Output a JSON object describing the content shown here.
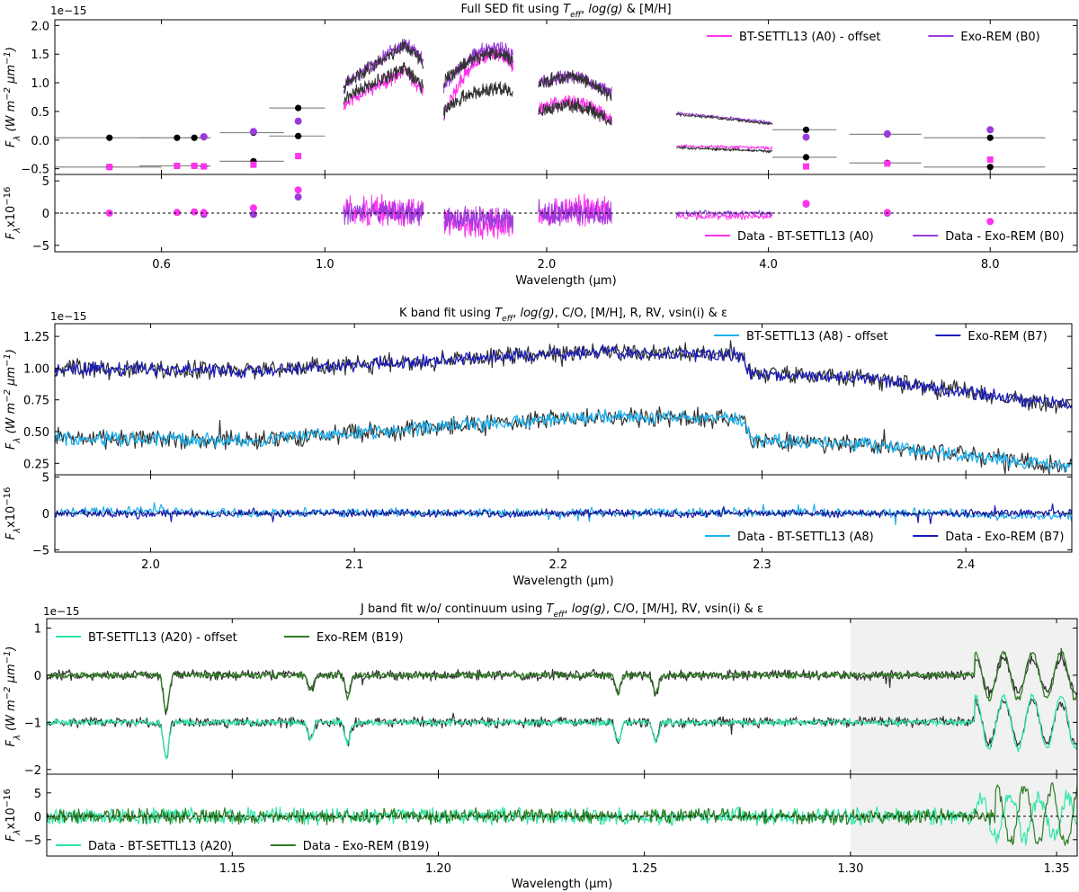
{
  "figure": "Three-panel spectral fit comparison (SED, K band, J band)",
  "chart_data": [
    {
      "type": "line",
      "id": "sed",
      "title_prefix": "Full SED fit using ",
      "title_suffix": " & [M/H]",
      "xlabel": "Wavelength (μm)",
      "xscale": "log",
      "xlim": [
        0.43,
        10.5
      ],
      "xticks": [
        0.6,
        1.0,
        2.0,
        4.0,
        8.0
      ],
      "xtick_labels": [
        "0.6",
        "1.0",
        "2.0",
        "4.0",
        "8.0"
      ],
      "main": {
        "ylabel": "F_λ (W m^-2 μm^-1)",
        "exponent": "1e−15",
        "ylim": [
          -0.6,
          2.1
        ],
        "yticks": [
          -0.5,
          0.0,
          0.5,
          1.0,
          1.5,
          2.0
        ],
        "ytick_labels": [
          "−0.5",
          "0.0",
          "0.5",
          "1.0",
          "1.5",
          "2.0"
        ],
        "legend": [
          {
            "label": "BT-SETTL13 (A0) - offset",
            "color": "#ff33ee"
          },
          {
            "label": "Exo-REM (B0)",
            "color": "#9b3bdc"
          }
        ],
        "photometry": [
          {
            "x": 0.51,
            "data": 0.04,
            "xerr": 0.09,
            "bt": -0.47,
            "exo": null,
            "offset": -0.47
          },
          {
            "x": 0.63,
            "data": 0.04,
            "xerr": 0.07,
            "bt": -0.45,
            "exo": null,
            "offset": -0.45
          },
          {
            "x": 0.665,
            "data": 0.04,
            "xerr": 0.02,
            "bt": -0.45,
            "exo": null,
            "offset": -0.45
          },
          {
            "x": 0.685,
            "data": 0.05,
            "xerr": 0.01,
            "bt": -0.46,
            "exo": 0.06,
            "offset": -0.46
          },
          {
            "x": 0.8,
            "data": 0.13,
            "xerr": 0.08,
            "bt": -0.43,
            "exo": 0.15,
            "offset": -0.37
          },
          {
            "x": 0.92,
            "data": 0.56,
            "xerr": 0.08,
            "bt": -0.28,
            "exo": 0.33,
            "offset": 0.07
          },
          {
            "x": 4.5,
            "data": 0.18,
            "xerr": 0.45,
            "bt": -0.46,
            "exo": 0.05,
            "offset": -0.3
          },
          {
            "x": 5.8,
            "data": 0.1,
            "xerr": 0.65,
            "bt": -0.41,
            "exo": 0.11,
            "offset": -0.4
          },
          {
            "x": 8.0,
            "data": 0.04,
            "xerr": 1.5,
            "bt": -0.34,
            "exo": 0.18,
            "offset": -0.47
          }
        ],
        "spectra": [
          {
            "band": "J",
            "range": [
              1.06,
              1.36
            ],
            "data_top": [
              0.9,
              1.85
            ],
            "data_low": [
              0.7,
              1.4
            ],
            "exo_top": [
              0.9,
              1.9
            ],
            "bt_low": [
              0.6,
              1.35
            ]
          },
          {
            "band": "H",
            "range": [
              1.45,
              1.8
            ],
            "data_top": [
              1.0,
              1.5
            ],
            "data_low": [
              0.5,
              0.9
            ],
            "exo_top": [
              0.9,
              1.6
            ],
            "bt_low": [
              0.45,
              1.5
            ]
          },
          {
            "band": "K",
            "range": [
              1.95,
              2.45
            ],
            "data_top": [
              1.0,
              0.75
            ],
            "data_low": [
              0.5,
              0.3
            ],
            "exo_top": [
              1.0,
              0.8
            ],
            "bt_low": [
              0.55,
              0.35
            ]
          },
          {
            "band": "L",
            "range": [
              3.0,
              4.05
            ],
            "data_top": [
              0.45,
              0.28
            ],
            "data_low": [
              -0.13,
              -0.2
            ],
            "exo_top": [
              0.47,
              0.3
            ],
            "bt_low": [
              -0.1,
              -0.14
            ]
          }
        ]
      },
      "residual": {
        "ylabel": "F_λ x10^-16",
        "ylim": [
          -6,
          6
        ],
        "yticks": [
          -5,
          0,
          5
        ],
        "ytick_labels": [
          "−5",
          "0",
          "5"
        ],
        "legend": [
          {
            "label": "Data - BT-SETTL13 (A0)",
            "color": "#ff33ee"
          },
          {
            "label": "Data - Exo-REM (B0)",
            "color": "#9b3bdc"
          }
        ],
        "photometry": [
          {
            "x": 0.51,
            "bt": 0.0,
            "exo": null
          },
          {
            "x": 0.63,
            "bt": 0.1,
            "exo": null
          },
          {
            "x": 0.665,
            "bt": 0.2,
            "exo": null
          },
          {
            "x": 0.685,
            "bt": 0.1,
            "exo": -0.2
          },
          {
            "x": 0.8,
            "bt": 0.8,
            "exo": -0.2
          },
          {
            "x": 0.92,
            "bt": 3.6,
            "exo": 2.5
          },
          {
            "x": 4.5,
            "bt": 1.5,
            "exo": 1.4
          },
          {
            "x": 5.8,
            "bt": 0.1,
            "exo": 0.0
          },
          {
            "x": 8.0,
            "bt": -1.3,
            "exo": null
          }
        ]
      }
    },
    {
      "type": "line",
      "id": "kband",
      "title_prefix": "K band fit using ",
      "title_suffix": ", C/O, [M/H], R, RV, vsin(i) & ε",
      "xlabel": "Wavelength (μm)",
      "xlim": [
        1.953,
        2.452
      ],
      "xticks": [
        2.0,
        2.1,
        2.2,
        2.3,
        2.4
      ],
      "xtick_labels": [
        "2.0",
        "2.1",
        "2.2",
        "2.3",
        "2.4"
      ],
      "main": {
        "ylabel": "F_λ (W m^-2 μm^-1)",
        "exponent": "1e−15",
        "ylim": [
          0.16,
          1.35
        ],
        "yticks": [
          0.25,
          0.5,
          0.75,
          1.0,
          1.25
        ],
        "ytick_labels": [
          "0.25",
          "0.50",
          "0.75",
          "1.00",
          "1.25"
        ],
        "legend": [
          {
            "label": "BT-SETTL13 (A8) - offset",
            "color": "#1ab0ee"
          },
          {
            "label": "Exo-REM (B7)",
            "color": "#1a1ab8"
          }
        ],
        "continuum_top": [
          [
            1.953,
            1.0
          ],
          [
            2.05,
            0.98
          ],
          [
            2.15,
            1.07
          ],
          [
            2.22,
            1.13
          ],
          [
            2.29,
            1.1
          ],
          [
            2.295,
            0.95
          ],
          [
            2.35,
            0.92
          ],
          [
            2.452,
            0.7
          ]
        ],
        "continuum_low": [
          [
            1.953,
            0.45
          ],
          [
            2.05,
            0.43
          ],
          [
            2.15,
            0.55
          ],
          [
            2.22,
            0.62
          ],
          [
            2.29,
            0.6
          ],
          [
            2.295,
            0.43
          ],
          [
            2.35,
            0.4
          ],
          [
            2.452,
            0.22
          ]
        ]
      },
      "residual": {
        "ylabel": "F_λ x10^-16",
        "ylim": [
          -5.3,
          5.3
        ],
        "yticks": [
          -5,
          0,
          5
        ],
        "ytick_labels": [
          "−5",
          "0",
          "5"
        ],
        "legend": [
          {
            "label": "Data - BT-SETTL13 (A8)",
            "color": "#1ab0ee"
          },
          {
            "label": "Data - Exo-REM (B7)",
            "color": "#1a1ab8"
          }
        ]
      }
    },
    {
      "type": "line",
      "id": "jband",
      "title_prefix": "J band fit w/o/ continuum using ",
      "title_suffix": ", C/O, [M/H], RV, vsin(i) & ε",
      "xlabel": "Wavelength (μm)",
      "xlim": [
        1.105,
        1.355
      ],
      "xticks": [
        1.15,
        1.2,
        1.25,
        1.3,
        1.35
      ],
      "xtick_labels": [
        "1.15",
        "1.20",
        "1.25",
        "1.30",
        "1.35"
      ],
      "shaded_region": [
        1.3,
        1.355
      ],
      "main": {
        "ylabel": "F_λ (W m^-2 μm^-1)",
        "exponent": "1e−15",
        "ylim": [
          -2.1,
          1.2
        ],
        "yticks": [
          -2,
          -1,
          0,
          1
        ],
        "ytick_labels": [
          "−2",
          "−1",
          "0",
          "1"
        ],
        "legend": [
          {
            "label": "BT-SETTL13 (A20) - offset",
            "color": "#2ee6a8"
          },
          {
            "label": "Exo-REM (B19)",
            "color": "#2f7d23"
          }
        ],
        "absorption_lines": [
          1.134,
          1.169,
          1.178,
          1.2436,
          1.2528
        ]
      },
      "residual": {
        "ylabel": "F_λ x10^-16",
        "ylim": [
          -8.5,
          9
        ],
        "yticks": [
          -5,
          0,
          5
        ],
        "ytick_labels": [
          "−5",
          "0",
          "5"
        ],
        "legend": [
          {
            "label": "Data - BT-SETTL13 (A20)",
            "color": "#2ee6a8"
          },
          {
            "label": "Data - Exo-REM (B19)",
            "color": "#2f7d23"
          }
        ]
      }
    }
  ]
}
